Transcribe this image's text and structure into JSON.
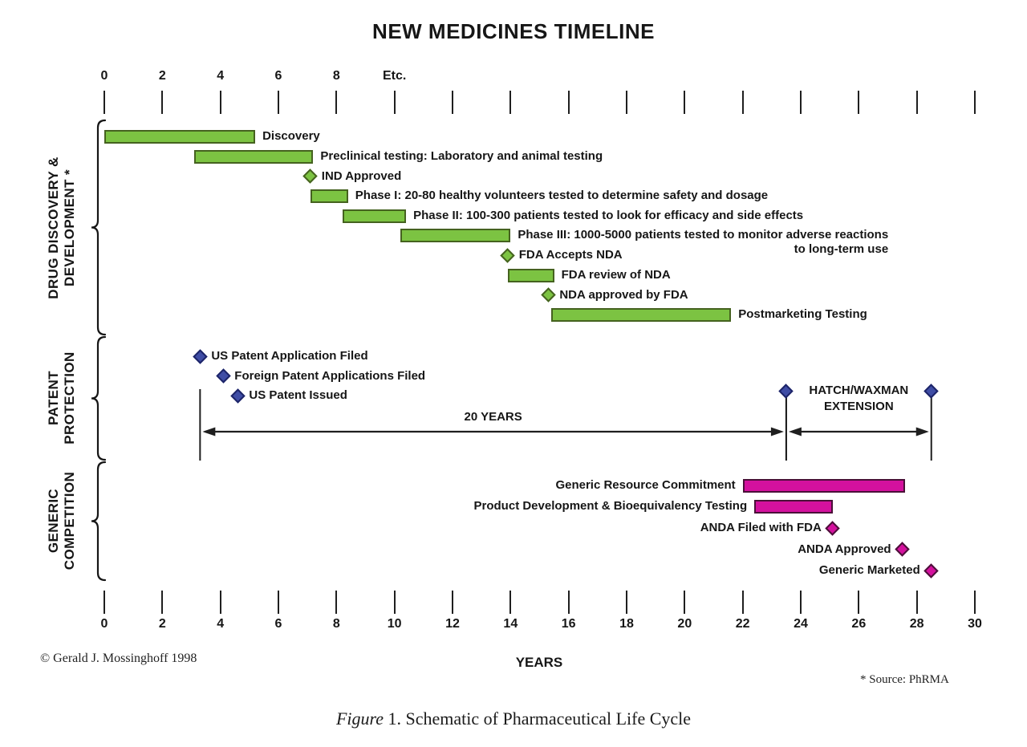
{
  "header": {
    "title": "NEW MEDICINES TIMELINE"
  },
  "footer": {
    "xlabel": "YEARS",
    "copyright": "© Gerald J. Mossinghoff 1998",
    "source_note": "* Source:  PhRMA",
    "caption_italic": "Figure",
    "caption_text": " 1. Schematic of Pharmaceutical Life Cycle"
  },
  "colors": {
    "green": "#7cc342",
    "green_border": "#45621f",
    "blue": "#3f4da5",
    "blue_border": "#1c2468",
    "magenta": "#d4119e",
    "magenta_border": "#4a1038",
    "axis": "#1f1f1f"
  },
  "chart_data": {
    "type": "timeline-gantt",
    "title": "NEW MEDICINES TIMELINE",
    "xlabel": "YEARS",
    "x_axis": {
      "unit": "years",
      "min": 0,
      "max": 30,
      "tick_step": 2,
      "top_tick_labels": [
        {
          "year": 0,
          "label": "0"
        },
        {
          "year": 2,
          "label": "2"
        },
        {
          "year": 4,
          "label": "4"
        },
        {
          "year": 6,
          "label": "6"
        },
        {
          "year": 8,
          "label": "8"
        },
        {
          "year": 10,
          "label": "Etc."
        }
      ]
    },
    "sections": [
      {
        "id": "drug-discovery",
        "label_lines": [
          "DRUG DISCOVERY &",
          "DEVELOPMENT *"
        ],
        "color_key": "green",
        "label_side": "right",
        "items": [
          {
            "row": 0,
            "type": "bar",
            "start": 0.0,
            "end": 5.2,
            "label": "Discovery"
          },
          {
            "row": 1,
            "type": "bar",
            "start": 3.1,
            "end": 7.2,
            "label": "Preclinical testing:  Laboratory and animal testing"
          },
          {
            "row": 2,
            "type": "milestone",
            "at": 7.1,
            "label": "IND Approved"
          },
          {
            "row": 3,
            "type": "bar",
            "start": 7.1,
            "end": 8.4,
            "label": "Phase I:  20-80 healthy volunteers tested to determine safety and dosage"
          },
          {
            "row": 4,
            "type": "bar",
            "start": 8.2,
            "end": 10.4,
            "label": "Phase II:  100-300 patients tested to look for efficacy and side effects"
          },
          {
            "row": 5,
            "type": "bar",
            "start": 10.2,
            "end": 14.0,
            "label": "Phase III:  1000-5000 patients tested to monitor adverse reactions",
            "label2": "to long-term use"
          },
          {
            "row": 6,
            "type": "milestone",
            "at": 13.9,
            "label": "FDA Accepts NDA"
          },
          {
            "row": 7,
            "type": "bar",
            "start": 13.9,
            "end": 15.5,
            "label": "FDA review of NDA"
          },
          {
            "row": 8,
            "type": "milestone",
            "at": 15.3,
            "label": "NDA approved by FDA"
          },
          {
            "row": 9,
            "type": "bar",
            "start": 15.4,
            "end": 21.6,
            "label": "Postmarketing Testing"
          }
        ]
      },
      {
        "id": "patent-protection",
        "label_lines": [
          "PATENT",
          "PROTECTION"
        ],
        "color_key": "blue",
        "label_side": "right",
        "items": [
          {
            "row": 0,
            "type": "milestone",
            "at": 3.3,
            "label": "US Patent Application Filed"
          },
          {
            "row": 1,
            "type": "milestone",
            "at": 4.1,
            "label": "Foreign Patent Applications Filed"
          },
          {
            "row": 2,
            "type": "milestone",
            "at": 4.6,
            "label": "US Patent Issued"
          },
          {
            "type": "extension",
            "start": 23.5,
            "end": 28.5,
            "label_lines": [
              "HATCH/WAXMAN",
              "EXTENSION"
            ]
          },
          {
            "type": "span",
            "start": 3.3,
            "end": 23.5,
            "label": "20 YEARS"
          },
          {
            "type": "span",
            "start": 23.5,
            "end": 28.5
          }
        ]
      },
      {
        "id": "generic-competition",
        "label_lines": [
          "GENERIC",
          "COMPETITION"
        ],
        "color_key": "magenta",
        "label_side": "left",
        "items": [
          {
            "row": 0,
            "type": "bar",
            "start": 22.0,
            "end": 27.6,
            "label": "Generic Resource Commitment"
          },
          {
            "row": 1,
            "type": "bar",
            "start": 22.4,
            "end": 25.1,
            "label": "Product Development & Bioequivalency Testing"
          },
          {
            "row": 2,
            "type": "milestone",
            "at": 25.1,
            "label": "ANDA Filed with FDA"
          },
          {
            "row": 3,
            "type": "milestone",
            "at": 27.5,
            "label": "ANDA Approved"
          },
          {
            "row": 4,
            "type": "milestone",
            "at": 28.5,
            "label": "Generic Marketed"
          }
        ]
      }
    ]
  }
}
